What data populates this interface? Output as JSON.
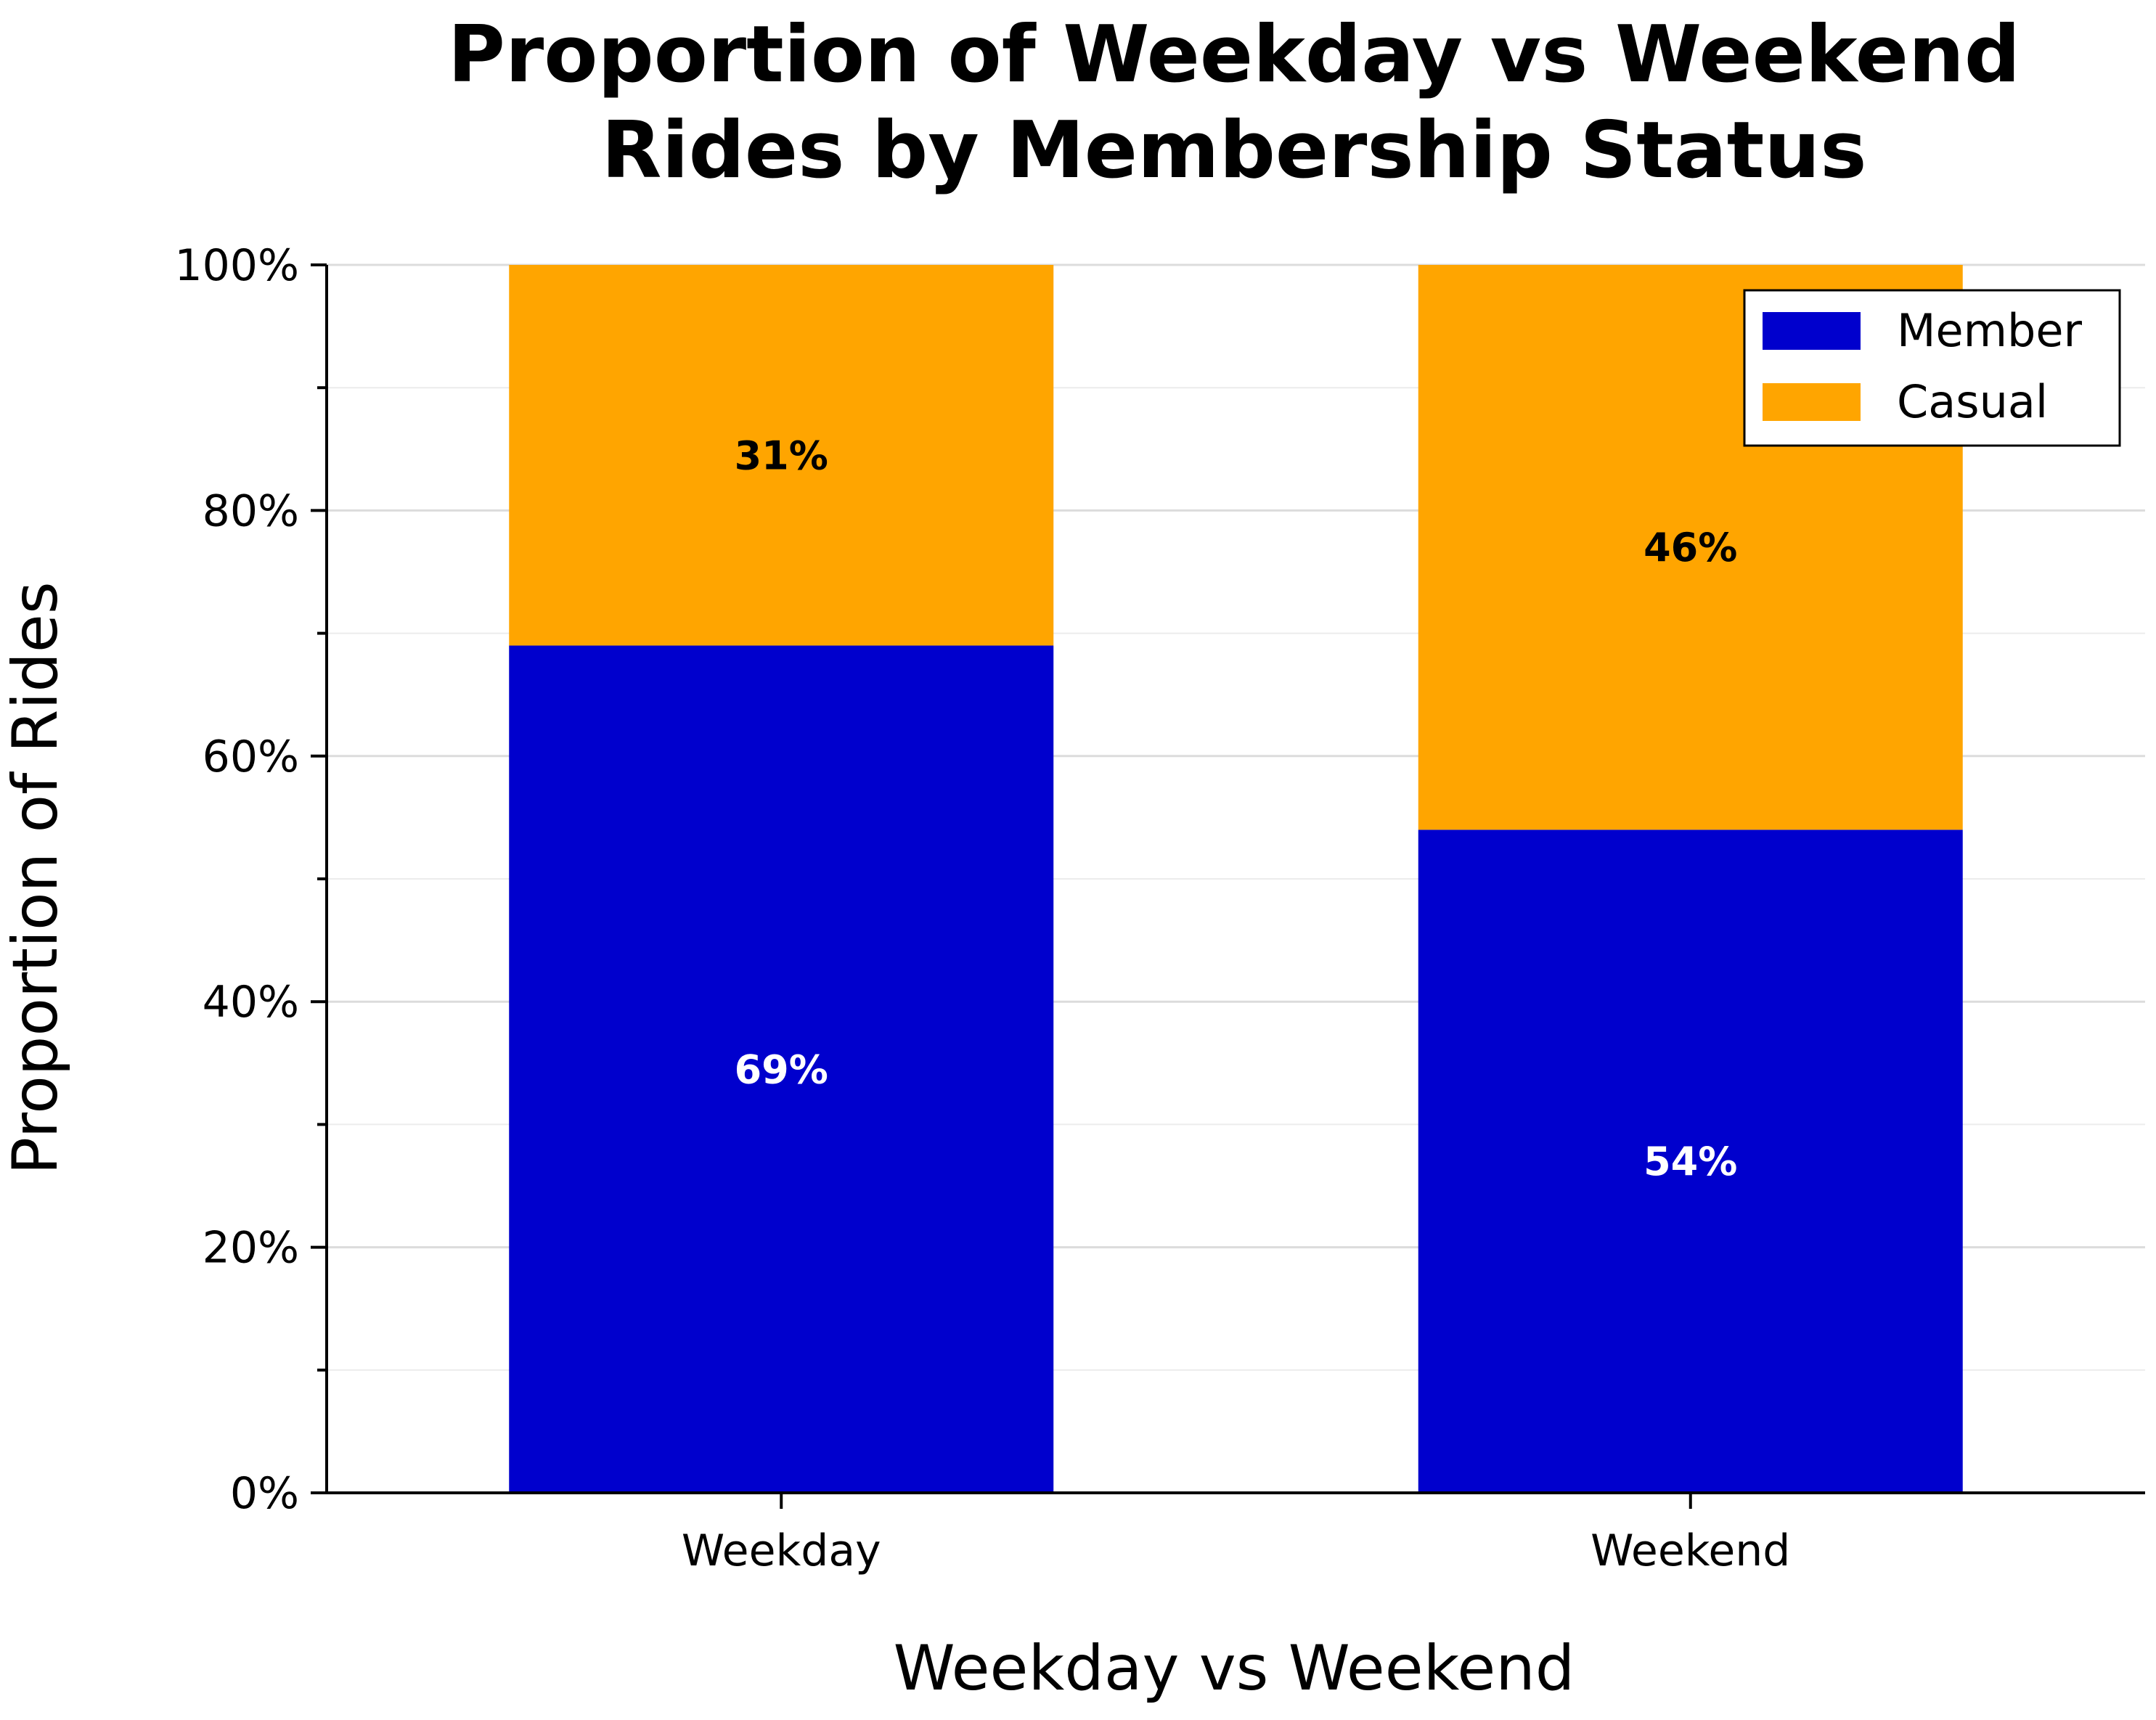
{
  "chart_data": {
    "type": "bar",
    "stacked": true,
    "title": [
      "Proportion of Weekday vs Weekend",
      "Rides by Membership Status"
    ],
    "xlabel": "Weekday vs Weekend",
    "ylabel": "Proportion of Rides",
    "categories": [
      "Weekday",
      "Weekend"
    ],
    "series": [
      {
        "name": "Member",
        "values": [
          69,
          54
        ],
        "labels": [
          "69%",
          "54%"
        ],
        "color": "#0000cd",
        "label_color": "#ffffff"
      },
      {
        "name": "Casual",
        "values": [
          31,
          46
        ],
        "labels": [
          "31%",
          "46%"
        ],
        "color": "#ffa500",
        "label_color": "#000000"
      }
    ],
    "ylim": [
      0,
      100
    ],
    "yticks": [
      0,
      20,
      40,
      60,
      80,
      100
    ],
    "ytick_labels": [
      "0%",
      "20%",
      "40%",
      "60%",
      "80%",
      "100%"
    ],
    "y_minor_step": 10,
    "grid": "horizontal",
    "legend_position": "top-right"
  }
}
